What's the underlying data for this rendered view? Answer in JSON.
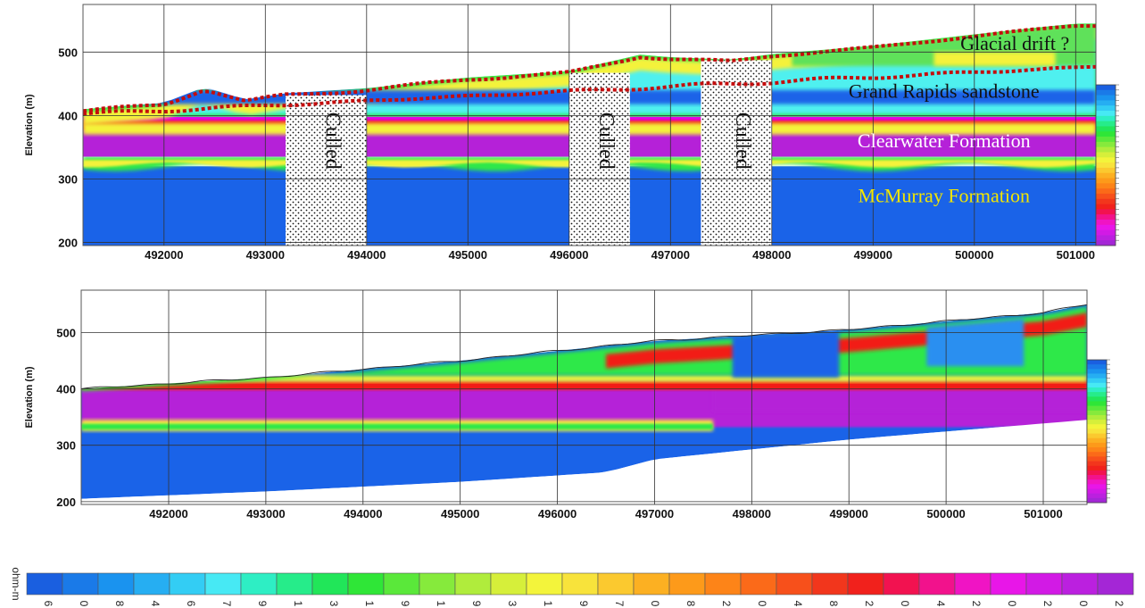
{
  "colors": {
    "blue": "#1a63e8",
    "purple": "#b521d8",
    "magenta": "#e600e6",
    "red": "#f21a12",
    "orange": "#ff9a00",
    "yellow": "#f4f23a",
    "green": "#2ee84a",
    "cyan": "#4ff0ef",
    "drift_line": "#c40d0d"
  },
  "chart_data": [
    {
      "type": "heatmap",
      "title": "",
      "ylabel": "Elevation (m)",
      "xlim": [
        491200,
        501200
      ],
      "ylim": [
        195,
        575
      ],
      "grid": true,
      "x_ticks": [
        492000,
        493000,
        494000,
        495000,
        "496000",
        497000,
        498000,
        499000,
        500000,
        501000
      ],
      "x_tick_labels": [
        "492000",
        "493000",
        "494000",
        "495000",
        "496000",
        "497000",
        "498000",
        "499000",
        "500000",
        "501000"
      ],
      "y_ticks": [
        200,
        300,
        400,
        500
      ],
      "y_tick_labels": [
        "200",
        "300",
        "400",
        "500"
      ],
      "culled_label": "Culled",
      "culled_zones": [
        [
          493200,
          494000
        ],
        [
          496000,
          496600
        ],
        [
          497300,
          498000
        ]
      ],
      "annotations": [
        {
          "text": "Glacial drift ?",
          "x": 500400,
          "y": 503,
          "color": "#111111"
        },
        {
          "text": "Grand Rapids sandstone",
          "x": 499700,
          "y": 428,
          "color": "#111111"
        },
        {
          "text": "Clearwater Formation",
          "x": 499700,
          "y": 350,
          "color": "#ffffff"
        },
        {
          "text": "McMurray Formation",
          "x": 499700,
          "y": 263,
          "color": "#f2e600"
        }
      ],
      "layers": [
        {
          "name": "McMurray Formation",
          "top_elevation": 315,
          "color": "blue"
        },
        {
          "name": "Clearwater Formation",
          "top_elevation": 400,
          "color": "purple"
        },
        {
          "name": "Grand Rapids sandstone",
          "top_elevation": 460,
          "color": "green"
        }
      ],
      "surface_elevation": {
        "x": [
          491200,
          492000,
          492400,
          492800,
          493200,
          494000,
          495000,
          496000,
          496700,
          497000,
          497600,
          498000,
          499000,
          500000,
          501000
        ],
        "y": [
          410,
          420,
          445,
          425,
          435,
          443,
          460,
          470,
          496,
          492,
          488,
          497,
          510,
          528,
          545
        ]
      }
    },
    {
      "type": "heatmap",
      "title": "",
      "ylabel": "Elevation (m)",
      "xlim": [
        491100,
        501450
      ],
      "ylim": [
        195,
        575
      ],
      "grid": true,
      "x_ticks": [
        492000,
        493000,
        494000,
        495000,
        496000,
        497000,
        498000,
        499000,
        500000,
        501000
      ],
      "x_tick_labels": [
        "492000",
        "493000",
        "494000",
        "495000",
        "496000",
        "497000",
        "498000",
        "499000",
        "500000",
        "501000"
      ],
      "y_ticks": [
        200,
        300,
        400,
        500
      ],
      "y_tick_labels": [
        "200",
        "300",
        "400",
        "500"
      ],
      "surface_elevation": {
        "x": [
          491100,
          493000,
          495000,
          497000,
          499000,
          501000,
          501450
        ],
        "y": [
          400,
          420,
          450,
          485,
          505,
          535,
          550
        ]
      },
      "bottom_elevation": {
        "x": [
          491100,
          493000,
          495000,
          496500,
          497000,
          499000,
          501450
        ],
        "y": [
          205,
          218,
          235,
          252,
          275,
          310,
          345
        ]
      }
    }
  ],
  "legend": {
    "unit": "ohm-m",
    "tick_labels": [
      "6",
      "0",
      "8",
      "4",
      "6",
      "7",
      "9",
      "1",
      "3",
      "1",
      "9",
      "1",
      "9",
      "3",
      "1",
      "9",
      "7",
      "0",
      "8",
      "2",
      "0",
      "4",
      "8",
      "2",
      "0",
      "4",
      "2",
      "0",
      "2",
      "0",
      "2"
    ],
    "colors": [
      "#1a5fe0",
      "#1a7ae8",
      "#1a93ef",
      "#26aef2",
      "#33cdf4",
      "#47e9f4",
      "#2eeec4",
      "#26ec8a",
      "#21e659",
      "#2fe637",
      "#5ae83a",
      "#86ea3c",
      "#b0ec3c",
      "#d6ef3a",
      "#f3f43b",
      "#f8e33b",
      "#fbc92f",
      "#fcb022",
      "#fd9a1a",
      "#fd8418",
      "#fb6a19",
      "#f7501b",
      "#f2361c",
      "#f1211c",
      "#f21250",
      "#f2128c",
      "#f014c4",
      "#e816e8",
      "#d21ae5",
      "#bb20df",
      "#a426d6"
    ]
  }
}
